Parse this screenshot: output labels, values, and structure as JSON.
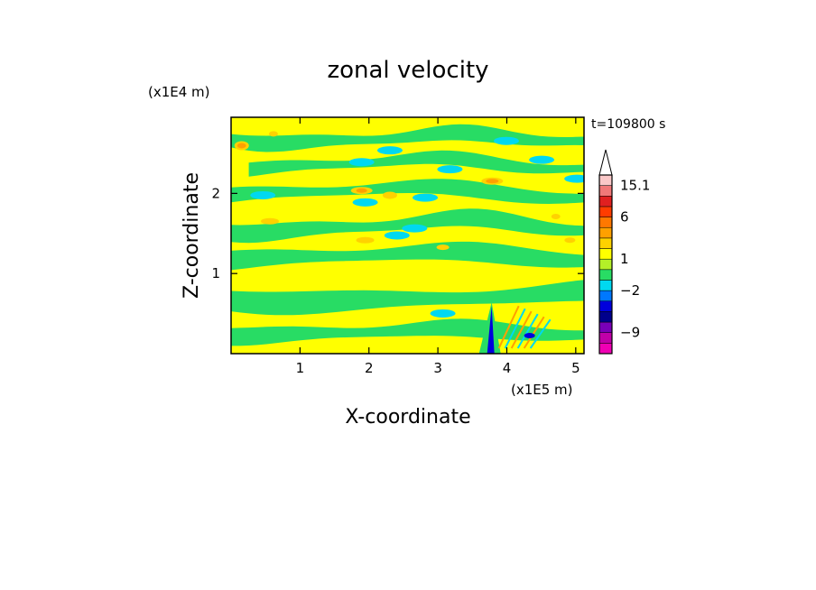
{
  "chart_data": {
    "type": "heatmap",
    "title": "zonal velocity",
    "xlabel": "X-coordinate",
    "ylabel": "Z-coordinate",
    "x_scale_label": "(x1E5 m)",
    "y_scale_label": "(x1E4 m)",
    "time_label": "t=109800 s",
    "xlim": [
      0,
      5.12
    ],
    "ylim": [
      0,
      2.95
    ],
    "x_ticks": [
      1,
      2,
      3,
      4,
      5
    ],
    "y_ticks": [
      1,
      2
    ],
    "x_tick_labels": [
      "1",
      "2",
      "3",
      "4",
      "5"
    ],
    "y_tick_labels": [
      "1",
      "2"
    ],
    "colorbar": {
      "labels": [
        {
          "text": "15.1",
          "value": 15.1
        },
        {
          "text": "6",
          "value": 6
        },
        {
          "text": "1",
          "value": 1
        },
        {
          "text": "−2",
          "value": -2
        },
        {
          "text": "−9",
          "value": -9
        }
      ],
      "levels": [
        -15,
        -12,
        -9,
        -6,
        -4,
        -3,
        -2,
        -1,
        0,
        1,
        2,
        3,
        4,
        6,
        9,
        12,
        15.1
      ],
      "colors": [
        "#f000b4",
        "#c000a8",
        "#7a00b8",
        "#00008c",
        "#0000dc",
        "#0078ff",
        "#00d8f0",
        "#28dc64",
        "#b4f028",
        "#ffff00",
        "#ffd200",
        "#ffa000",
        "#ff7800",
        "#ff3c00",
        "#e02020",
        "#f07878",
        "#fac8c8"
      ],
      "extend_max": true
    },
    "dominant_colors": {
      "near_zero_positive": "#ffff00",
      "near_zero_negative": "#28dc64",
      "weak_negative": "#00d8f0",
      "weak_positive": "#ffd200",
      "moderate_positive": "#ffa000",
      "strong_negative": "#0000dc"
    }
  }
}
